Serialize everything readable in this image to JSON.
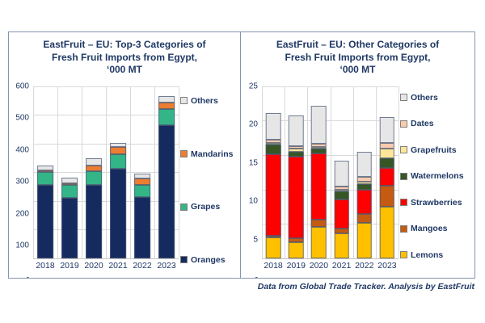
{
  "figure": {
    "background": "#ffffff",
    "text_color": "#1F3864",
    "panel_border_color": "#8496B0",
    "gridline_color": "#D9D9D9",
    "footer": "Data from Global Trade Tracker. Analysis by EastFruit"
  },
  "chart_data": [
    {
      "id": "left",
      "type": "bar",
      "stacked": true,
      "title_lines": [
        "EastFruit – EU: Top-3 Categories of",
        "Fresh Fruit Imports from Egypt,",
        "‘000 MT"
      ],
      "title": "EastFruit – EU: Top-3 Categories of Fresh Fruit Imports from Egypt, ‘000 MT",
      "xlabel": "",
      "ylabel": "",
      "categories": [
        "2018",
        "2019",
        "2020",
        "2021",
        "2022",
        "2023"
      ],
      "ylim": [
        0,
        600
      ],
      "yticks": [
        600,
        500,
        400,
        300,
        200,
        100,
        0
      ],
      "ytick_labels": [
        "600",
        "500",
        "400",
        "300",
        "200",
        "100",
        "-"
      ],
      "grid": "horizontal and vertical, light gray",
      "legend_position": "right",
      "series": [
        {
          "name": "Oranges",
          "color": "#152A5E",
          "values": [
            255,
            210,
            256,
            313,
            215,
            463
          ]
        },
        {
          "name": "Grapes",
          "color": "#33B587",
          "values": [
            45,
            47,
            47,
            49,
            42,
            57
          ]
        },
        {
          "name": "Mandarins",
          "color": "#ED7D31",
          "values": [
            8,
            6,
            22,
            26,
            23,
            23
          ]
        },
        {
          "name": "Others",
          "color": "#E7E6E6",
          "values": [
            17,
            19,
            23,
            15,
            15,
            22
          ]
        }
      ],
      "totals": [
        325,
        282,
        348,
        403,
        295,
        565
      ]
    },
    {
      "id": "right",
      "type": "bar",
      "stacked": true,
      "title_lines": [
        "EastFruit – EU: Other Categories of",
        "Fresh Fruit Imports from Egypt,",
        "‘000 MT"
      ],
      "title": "EastFruit – EU: Other Categories of Fresh Fruit Imports from Egypt, ‘000 MT",
      "xlabel": "",
      "ylabel": "",
      "categories": [
        "2018",
        "2019",
        "2020",
        "2021",
        "2022",
        "2023"
      ],
      "ylim": [
        0,
        25
      ],
      "yticks": [
        25,
        20,
        15,
        10,
        5,
        0
      ],
      "ytick_labels": [
        "25",
        "20",
        "15",
        "10",
        "5",
        "-"
      ],
      "grid": "horizontal and vertical, light gray",
      "legend_position": "right",
      "series": [
        {
          "name": "Lemons",
          "color": "#FFC000",
          "values": [
            3.0,
            2.4,
            4.6,
            3.6,
            5.2,
            7.5
          ]
        },
        {
          "name": "Mangoes",
          "color": "#C55A11",
          "values": [
            0.3,
            0.5,
            1.0,
            0.7,
            1.3,
            3.1
          ]
        },
        {
          "name": "Strawberries",
          "color": "#FF0000",
          "values": [
            11.8,
            11.9,
            9.7,
            4.3,
            3.5,
            2.5
          ]
        },
        {
          "name": "Watermelons",
          "color": "#375623",
          "values": [
            1.4,
            0.7,
            0.6,
            1.1,
            0.8,
            1.5
          ]
        },
        {
          "name": "Grapefruits",
          "color": "#FFE699",
          "values": [
            0.1,
            0.4,
            0.2,
            0.2,
            0.4,
            1.3
          ]
        },
        {
          "name": "Dates",
          "color": "#F8CBAD",
          "values": [
            0.5,
            0.4,
            0.5,
            0.5,
            0.6,
            0.9
          ]
        },
        {
          "name": "Others",
          "color": "#E7E6E6",
          "values": [
            3.9,
            4.5,
            5.5,
            3.7,
            3.7,
            3.7
          ]
        }
      ],
      "totals": [
        21.0,
        20.8,
        22.1,
        14.1,
        15.5,
        20.5
      ]
    }
  ]
}
